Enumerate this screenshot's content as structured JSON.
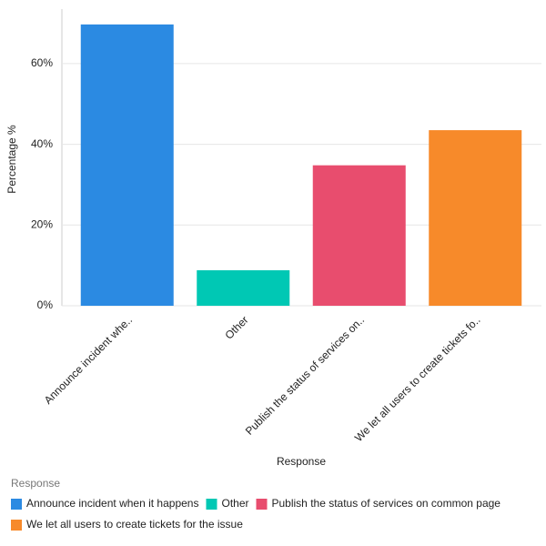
{
  "chart_data": {
    "type": "bar",
    "categories": [
      "Announce incident whe..",
      "Other",
      "Publish the status of services on..",
      "We let all users to create tickets fo.."
    ],
    "values": [
      69.7,
      8.8,
      34.8,
      43.5
    ],
    "colors": [
      "#2b8ae2",
      "#00c8b4",
      "#e84d6e",
      "#f78a2a"
    ],
    "x_label": "Response",
    "y_label": "Percentage %",
    "ylim": [
      0,
      73.5
    ],
    "yticks": [
      {
        "value": 0,
        "label": "0%"
      },
      {
        "value": 20,
        "label": "20%"
      },
      {
        "value": 40,
        "label": "40%"
      },
      {
        "value": 60,
        "label": "60%"
      }
    ],
    "grid": true,
    "legend": {
      "title": "Response",
      "labels": [
        "Announce incident when it happens",
        "Other",
        "Publish the status of services on common page",
        "We let all users to create tickets for the issue"
      ]
    }
  }
}
